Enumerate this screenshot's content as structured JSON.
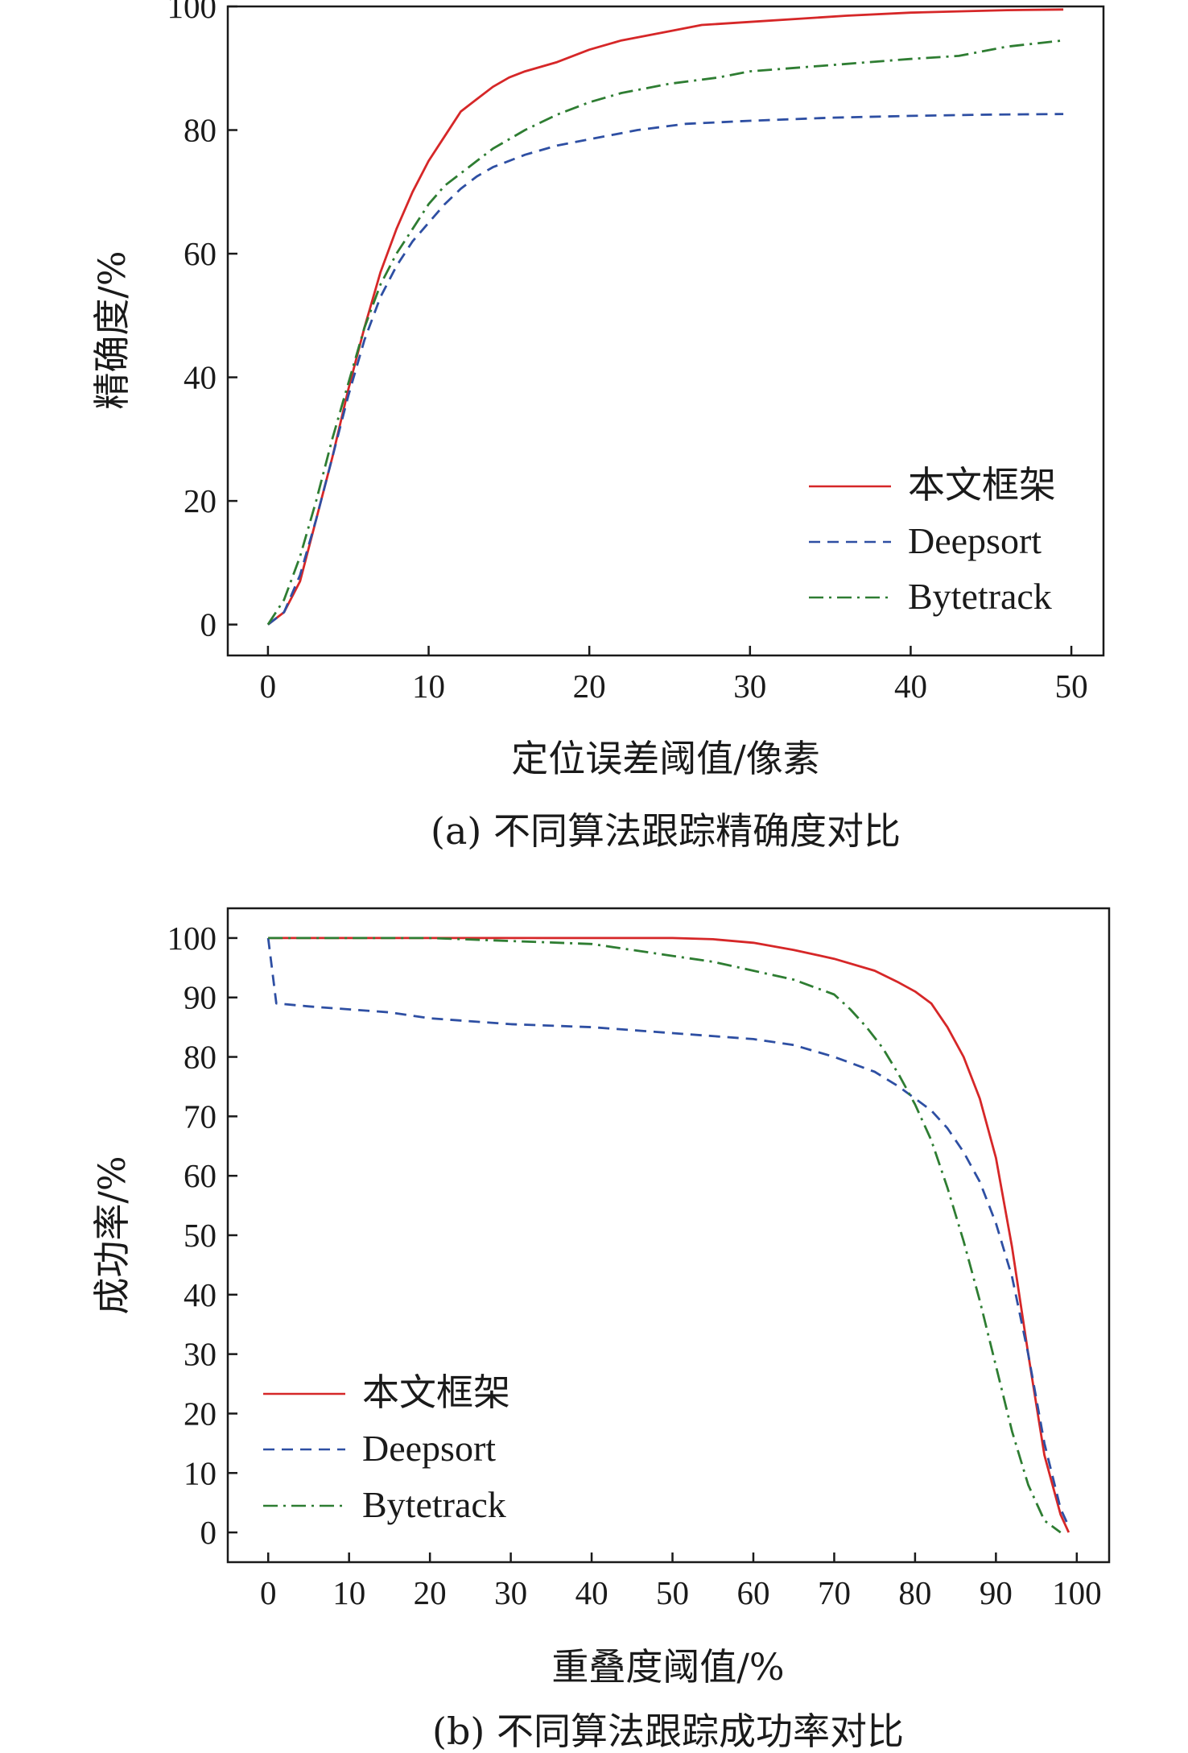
{
  "chart_data": [
    {
      "type": "line",
      "ylabel": "精确度/%",
      "xlabel": "定位误差阈值/像素",
      "caption": "(a) 不同算法跟踪精确度对比",
      "xlim": [
        -2.5,
        52
      ],
      "ylim": [
        -5,
        100
      ],
      "xticks": [
        0,
        10,
        20,
        30,
        40,
        50
      ],
      "yticks": [
        0,
        20,
        40,
        60,
        80,
        100
      ],
      "legend": "bottom-right",
      "grid": false,
      "series": [
        {
          "name": "本文框架",
          "color": "#d62728",
          "style": "solid",
          "x": [
            0,
            1,
            2,
            3,
            4,
            5,
            6,
            7,
            8,
            9,
            10,
            11,
            12,
            13,
            14,
            15,
            16,
            18,
            20,
            22,
            25,
            27,
            30,
            33,
            36,
            40,
            43,
            46,
            49.5
          ],
          "y": [
            0,
            2,
            7,
            17,
            27,
            38,
            48,
            57,
            64,
            70,
            75,
            79,
            83,
            85,
            87,
            88.5,
            89.5,
            91,
            93,
            94.5,
            96,
            97,
            97.5,
            98,
            98.5,
            99,
            99.2,
            99.4,
            99.5
          ]
        },
        {
          "name": "Deepsort",
          "color": "#2e4fa3",
          "style": "dashed",
          "x": [
            0,
            1,
            2,
            3,
            4,
            5,
            6,
            7,
            8,
            9,
            10,
            11,
            12,
            13,
            14,
            16,
            18,
            20,
            23,
            26,
            30,
            35,
            40,
            45,
            49.5
          ],
          "y": [
            0,
            2,
            8,
            17,
            27,
            37,
            46,
            53,
            58,
            62,
            65,
            68,
            70.5,
            72.5,
            74,
            76,
            77.5,
            78.5,
            80,
            81,
            81.5,
            82,
            82.3,
            82.5,
            82.6
          ]
        },
        {
          "name": "Bytetrack",
          "color": "#2e7d32",
          "style": "dashdot",
          "x": [
            0,
            1,
            2,
            3,
            4,
            5,
            6,
            7,
            8,
            9,
            10,
            11,
            12,
            13,
            14,
            16,
            18,
            20,
            22,
            25,
            28,
            30,
            35,
            40,
            43,
            46,
            49.5
          ],
          "y": [
            0,
            4,
            11,
            20,
            30,
            39,
            48,
            55,
            60,
            64,
            68,
            71,
            73,
            75,
            77,
            80,
            82.5,
            84.5,
            86,
            87.5,
            88.5,
            89.5,
            90.5,
            91.5,
            92,
            93.5,
            94.5
          ]
        }
      ]
    },
    {
      "type": "line",
      "ylabel": "成功率/%",
      "xlabel": "重叠度阈值/%",
      "caption": "(b) 不同算法跟踪成功率对比",
      "xlim": [
        -5,
        104
      ],
      "ylim": [
        -5,
        105
      ],
      "xticks": [
        0,
        10,
        20,
        30,
        40,
        50,
        60,
        70,
        80,
        90,
        100
      ],
      "yticks": [
        0,
        10,
        20,
        30,
        40,
        50,
        60,
        70,
        80,
        90,
        100
      ],
      "legend": "bottom-left",
      "grid": false,
      "series": [
        {
          "name": "本文框架",
          "color": "#d62728",
          "style": "solid",
          "x": [
            0,
            20,
            40,
            50,
            55,
            60,
            65,
            70,
            75,
            78,
            80,
            82,
            84,
            86,
            88,
            90,
            92,
            94,
            96,
            98,
            99
          ],
          "y": [
            100,
            100,
            100,
            100,
            99.8,
            99.2,
            98,
            96.5,
            94.5,
            92.5,
            91,
            89,
            85,
            80,
            73,
            63,
            48,
            30,
            13,
            3,
            0
          ]
        },
        {
          "name": "Deepsort",
          "color": "#2e4fa3",
          "style": "dashed",
          "x": [
            0,
            1,
            5,
            10,
            15,
            20,
            30,
            40,
            50,
            60,
            65,
            70,
            75,
            78,
            80,
            82,
            84,
            86,
            88,
            90,
            92,
            94,
            96,
            98,
            99
          ],
          "y": [
            100,
            89,
            88.5,
            88,
            87.5,
            86.5,
            85.5,
            85,
            84,
            83,
            82,
            80,
            77.5,
            75,
            73,
            71,
            68,
            64,
            59,
            52,
            43,
            30,
            15,
            4,
            1
          ]
        },
        {
          "name": "Bytetrack",
          "color": "#2e7d32",
          "style": "dashdot",
          "x": [
            0,
            20,
            30,
            40,
            45,
            50,
            55,
            60,
            65,
            68,
            70,
            72,
            74,
            76,
            78,
            80,
            82,
            84,
            86,
            88,
            90,
            92,
            94,
            96,
            98
          ],
          "y": [
            100,
            100,
            99.5,
            99,
            98,
            97,
            96,
            94.5,
            93,
            91.5,
            90.5,
            88,
            85,
            81.5,
            77,
            72,
            66,
            58,
            49,
            39,
            28,
            17,
            8,
            2,
            0
          ]
        }
      ]
    }
  ]
}
